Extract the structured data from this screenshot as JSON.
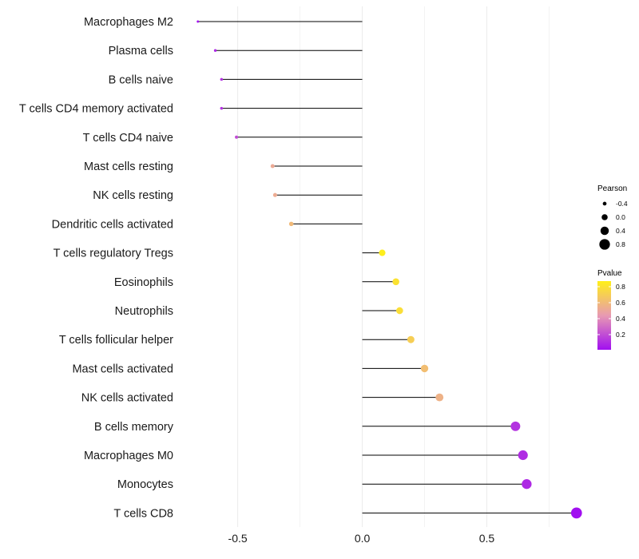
{
  "chart_data": {
    "type": "lollipop",
    "title": "",
    "xlabel": "",
    "ylabel": "",
    "xlim": [
      -0.72,
      0.88
    ],
    "xticks": [
      -0.5,
      0.0,
      0.5
    ],
    "xtick_labels": [
      "-0.5",
      "0.0",
      "0.5"
    ],
    "baseline": 0,
    "grid": true,
    "legend_placement": "right",
    "categories": [
      "Macrophages M2",
      "Plasma cells",
      "B cells naive",
      "T cells CD4 memory activated",
      "T cells CD4 naive",
      "Mast cells resting",
      "NK cells resting",
      "Dendritic cells activated",
      "T cells regulatory  Tregs ",
      "Eosinophils",
      "Neutrophils",
      "T cells follicular helper",
      "Mast cells activated",
      "NK cells activated",
      "B cells memory",
      "Macrophages M0",
      "Monocytes",
      "T cells CD8"
    ],
    "pearson": [
      -0.66,
      -0.59,
      -0.565,
      -0.565,
      -0.505,
      -0.36,
      -0.35,
      -0.285,
      0.08,
      0.135,
      0.15,
      0.195,
      0.25,
      0.31,
      0.615,
      0.645,
      0.66,
      0.86
    ],
    "pvalue": [
      0.02,
      0.08,
      0.12,
      0.12,
      0.2,
      0.52,
      0.53,
      0.6,
      0.86,
      0.8,
      0.78,
      0.7,
      0.62,
      0.56,
      0.12,
      0.1,
      0.09,
      0.01
    ],
    "size_legend": {
      "title": "Pearson",
      "values": [
        -0.4,
        0.0,
        0.4,
        0.8
      ],
      "labels": [
        "-0.4",
        "0.0",
        "0.4",
        "0.8"
      ]
    },
    "color_legend": {
      "title": "Pvalue",
      "ticks": [
        0.8,
        0.6,
        0.4,
        0.2
      ],
      "tick_labels": [
        "0.8",
        "0.6",
        "0.4",
        "0.2"
      ],
      "range": [
        0.01,
        0.87
      ],
      "colors": {
        "low": "#a10ff0",
        "mid": "#e89ab2",
        "high": "#fff018"
      }
    },
    "line_color": "#000000",
    "grid_color": "#ebebeb"
  }
}
